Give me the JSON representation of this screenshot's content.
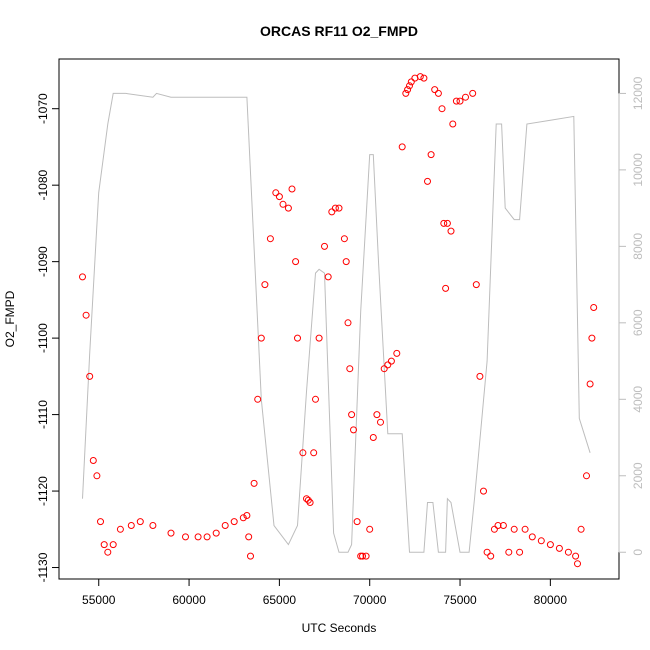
{
  "chart_data": {
    "type": "scatter",
    "title": "ORCAS RF11 O2_FMPD",
    "xlabel": "UTC Seconds",
    "ylabel": "O2_FMPD",
    "xlim": [
      52800,
      83800
    ],
    "ylim": [
      -1131.5,
      -1063.5
    ],
    "y2lim": [
      -700,
      12900
    ],
    "xticks": [
      "55000",
      "60000",
      "65000",
      "70000",
      "75000",
      "80000"
    ],
    "yticks": [
      "-1130",
      "-1120",
      "-1110",
      "-1100",
      "-1090",
      "-1080",
      "-1070"
    ],
    "y2ticks": [
      "0",
      "2000",
      "4000",
      "6000",
      "8000",
      "10000",
      "12000"
    ],
    "colors": {
      "o2_points": "#ff0000",
      "altitude_line": "#bdbdbd",
      "frame": "#000000"
    },
    "series": [
      {
        "marker": "circle-open",
        "color": "#ff0000",
        "axis": "left",
        "x": [
          54100,
          54300,
          54500,
          54700,
          54900,
          55100,
          55300,
          55500,
          55800,
          56200,
          56800,
          57300,
          58000,
          59000,
          59800,
          60500,
          61000,
          61500,
          62000,
          62500,
          63000,
          63200,
          63300,
          63400,
          63600,
          63800,
          64000,
          64200,
          64500,
          64800,
          65000,
          65200,
          65500,
          65700,
          65900,
          66000,
          66300,
          66500,
          66600,
          66700,
          66900,
          67000,
          67200,
          67500,
          67700,
          67900,
          68100,
          68300,
          68600,
          68700,
          68800,
          68900,
          69000,
          69100,
          69300,
          69500,
          69600,
          69800,
          70000,
          70200,
          70400,
          70600,
          70800,
          71000,
          71200,
          71500,
          71800,
          72000,
          72100,
          72200,
          72300,
          72500,
          72800,
          73000,
          73200,
          73400,
          73600,
          73800,
          74000,
          74100,
          74200,
          74300,
          74500,
          74600,
          74800,
          75000,
          75300,
          75700,
          75900,
          76100,
          76300,
          76500,
          76700,
          76900,
          77100,
          77400,
          77700,
          78000,
          78300,
          78600,
          79000,
          79500,
          80000,
          80500,
          81000,
          81400,
          81500,
          81700,
          82000,
          82200,
          82300,
          82400
        ],
        "y": [
          -1092,
          -1097,
          -1105,
          -1116,
          -1118,
          -1124,
          -1127,
          -1128,
          -1127,
          -1125,
          -1124.5,
          -1124,
          -1124.5,
          -1125.5,
          -1126,
          -1126,
          -1126,
          -1125.5,
          -1124.5,
          -1124,
          -1123.5,
          -1123.2,
          -1126,
          -1128.5,
          -1119,
          -1108,
          -1100,
          -1093,
          -1087,
          -1081,
          -1081.5,
          -1082.5,
          -1083,
          -1080.5,
          -1090,
          -1100,
          -1115,
          -1121,
          -1121.2,
          -1121.5,
          -1115,
          -1108,
          -1100,
          -1088,
          -1092,
          -1083.5,
          -1083,
          -1083,
          -1087,
          -1090,
          -1098,
          -1104,
          -1110,
          -1112,
          -1124,
          -1128.5,
          -1128.5,
          -1128.5,
          -1125,
          -1113,
          -1110,
          -1111,
          -1104,
          -1103.5,
          -1103,
          -1102,
          -1075,
          -1068,
          -1067.5,
          -1067,
          -1066.5,
          -1066,
          -1065.8,
          -1066,
          -1079.5,
          -1076,
          -1067.5,
          -1068,
          -1070,
          -1085,
          -1093.5,
          -1085,
          -1086,
          -1072,
          -1069,
          -1069,
          -1068.5,
          -1068,
          -1093,
          -1105,
          -1120,
          -1128,
          -1128.5,
          -1125,
          -1124.5,
          -1124.5,
          -1128,
          -1125,
          -1128,
          -1125,
          -1126,
          -1126.5,
          -1127,
          -1127.5,
          -1128,
          -1128.5,
          -1129.5,
          -1125,
          -1118,
          -1106,
          -1100,
          -1096
        ]
      },
      {
        "marker": "line",
        "color": "#bdbdbd",
        "axis": "right",
        "x": [
          54100,
          54500,
          55000,
          55500,
          55800,
          56500,
          58000,
          58200,
          59000,
          62000,
          63200,
          64000,
          64700,
          65500,
          66000,
          66500,
          67000,
          67200,
          67500,
          68000,
          68300,
          68800,
          69000,
          69500,
          70000,
          70200,
          70500,
          71000,
          71800,
          72200,
          72500,
          73000,
          73200,
          73500,
          73800,
          74200,
          74300,
          74500,
          75000,
          75500,
          75800,
          76500,
          77000,
          77300,
          77500,
          78000,
          78300,
          78700,
          80000,
          81300,
          81600,
          82200
        ],
        "y": [
          1400,
          5200,
          9400,
          11200,
          12000,
          12000,
          11900,
          12000,
          11900,
          11900,
          11900,
          4000,
          700,
          200,
          700,
          4200,
          7300,
          7400,
          7300,
          500,
          0,
          0,
          200,
          6300,
          10400,
          10400,
          7500,
          3100,
          3100,
          0,
          0,
          0,
          1300,
          1300,
          0,
          0,
          1400,
          1300,
          0,
          0,
          1400,
          5000,
          11200,
          11200,
          9000,
          8700,
          8700,
          11200,
          11300,
          11400,
          3500,
          2600
        ]
      }
    ]
  }
}
